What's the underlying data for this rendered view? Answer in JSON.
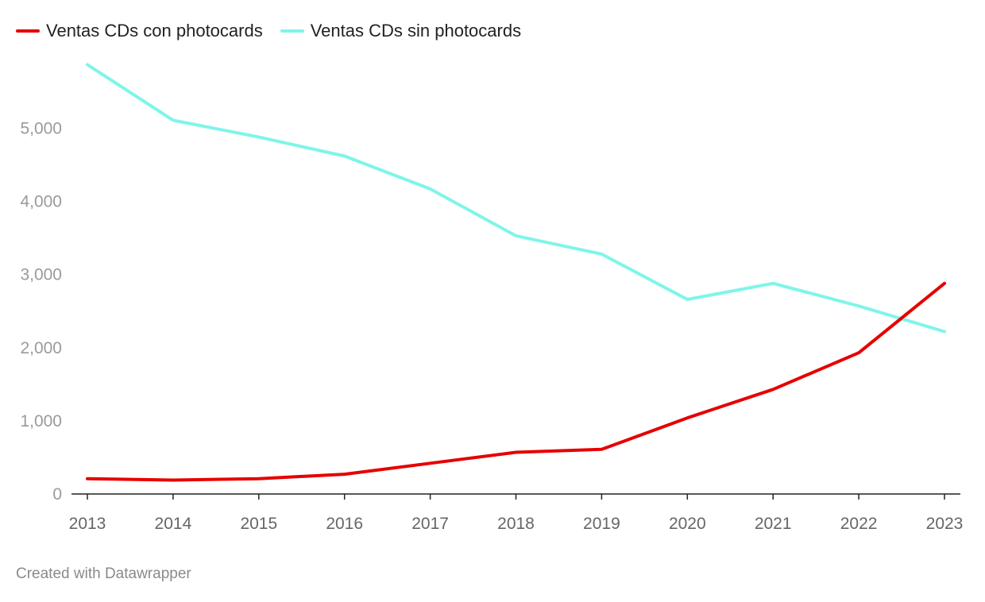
{
  "legend": {
    "series_0": "Ventas CDs con photocards",
    "series_1": "Ventas CDs sin photocards"
  },
  "footer": "Created with Datawrapper",
  "chart_data": {
    "type": "line",
    "title": "",
    "xlabel": "",
    "ylabel": "",
    "x": [
      2013,
      2014,
      2015,
      2016,
      2017,
      2018,
      2019,
      2020,
      2021,
      2022,
      2023
    ],
    "x_tick_labels": [
      "2013",
      "2014",
      "2015",
      "2016",
      "2017",
      "2018",
      "2019",
      "2020",
      "2021",
      "2022",
      "2023"
    ],
    "y_ticks": [
      0,
      1000,
      2000,
      3000,
      4000,
      5000
    ],
    "y_tick_labels": [
      "0",
      "1,000",
      "2,000",
      "3,000",
      "4,000",
      "5,000"
    ],
    "ylim": [
      0,
      5900
    ],
    "grid": false,
    "legend_position": "top-left",
    "series": [
      {
        "name": "Ventas CDs con photocards",
        "color": "#e60000",
        "values": [
          210,
          190,
          210,
          270,
          420,
          570,
          610,
          1040,
          1430,
          1930,
          2880
        ]
      },
      {
        "name": "Ventas CDs sin photocards",
        "color": "#7ff5e9",
        "values": [
          5870,
          5110,
          4880,
          4620,
          4170,
          3530,
          3280,
          2660,
          2880,
          2570,
          2220
        ]
      }
    ]
  }
}
